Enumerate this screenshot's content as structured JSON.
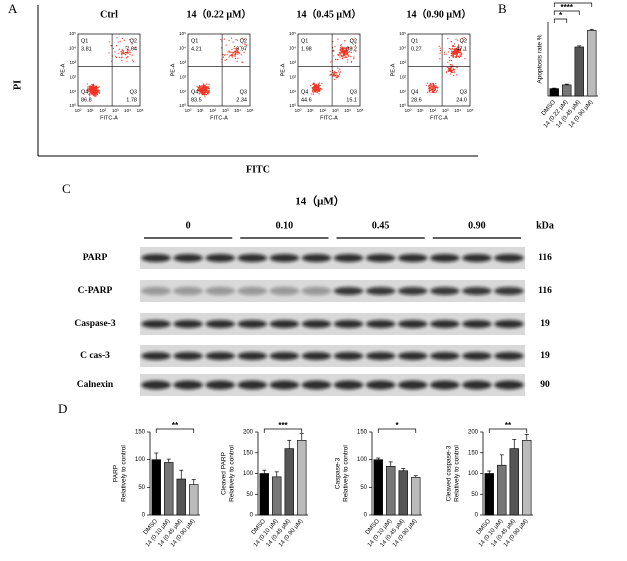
{
  "panel_labels": [
    "A",
    "B",
    "C",
    "D"
  ],
  "flow": {
    "y_label": "PI",
    "x_label": "FITC",
    "axis_ticks": [
      "10⁰",
      "10¹",
      "10²",
      "10³",
      "10⁴",
      "10⁵"
    ],
    "plots": [
      {
        "title": "Ctrl",
        "x_label": "FITC-A",
        "y_label": "PE-A",
        "quadrants": [
          {
            "name": "Q1",
            "value": "3.81"
          },
          {
            "name": "Q2",
            "value": "7.64"
          },
          {
            "name": "Q4",
            "value": "86.8"
          },
          {
            "name": "Q3",
            "value": "1.78"
          }
        ]
      },
      {
        "title": "14（0.22 μM）",
        "x_label": "FITC-A",
        "y_label": "PE-A",
        "quadrants": [
          {
            "name": "Q1",
            "value": "4.21"
          },
          {
            "name": "Q2",
            "value": "9.97"
          },
          {
            "name": "Q4",
            "value": "83.5"
          },
          {
            "name": "Q3",
            "value": "2.34"
          }
        ]
      },
      {
        "title": "14（0.45 μM）",
        "x_label": "FITC-A",
        "y_label": "PE-A",
        "quadrants": [
          {
            "name": "Q1",
            "value": "1.98"
          },
          {
            "name": "Q2",
            "value": "38.2"
          },
          {
            "name": "Q4",
            "value": "44.6"
          },
          {
            "name": "Q3",
            "value": "15.1"
          }
        ]
      },
      {
        "title": "14（0.90 μM）",
        "x_label": "FITC-A",
        "y_label": "PE-A",
        "quadrants": [
          {
            "name": "Q1",
            "value": "0.27"
          },
          {
            "name": "Q2",
            "value": "47.1"
          },
          {
            "name": "Q4",
            "value": "28.6"
          },
          {
            "name": "Q3",
            "value": "24.0"
          }
        ]
      }
    ]
  },
  "blot": {
    "header": "14（μM）",
    "groups": [
      "0",
      "0.10",
      "0.45",
      "0.90"
    ],
    "unit": "kDa",
    "rows": [
      {
        "name": "PARP",
        "kda": "116"
      },
      {
        "name": "C-PARP",
        "kda": "116"
      },
      {
        "name": "Caspase-3",
        "kda": "19"
      },
      {
        "name": "C cas-3",
        "kda": "19"
      },
      {
        "name": "Calnexin",
        "kda": "90"
      }
    ]
  },
  "chart_data": [
    {
      "type": "bar",
      "y_label": [
        "Apoptosis rate %"
      ],
      "categories": [
        "DMSO",
        "14 (0.22 μM)",
        "14 (0.45 μM)",
        "14 (0.90 μM)"
      ],
      "values": [
        8,
        12,
        53,
        71
      ],
      "errors": [
        0.5,
        0.8,
        1.2,
        1
      ],
      "colors": [
        "#000000",
        "#777777",
        "#555555",
        "#bbbbbb"
      ],
      "ylim": [
        0,
        80
      ],
      "comparisons": [
        {
          "label": "*",
          "between": [
            "DMSO",
            "14 (0.22 μM)"
          ]
        },
        {
          "label": "****",
          "between": [
            "DMSO",
            "14 (0.45 μM)"
          ]
        },
        {
          "label": "****",
          "between": [
            "DMSO",
            "14 (0.90 μM)"
          ]
        }
      ]
    },
    {
      "type": "bar",
      "y_label": [
        "PARP",
        "Relatively to control"
      ],
      "categories": [
        "DMSO",
        "14 (0.10 μM)",
        "14 (0.45 μM)",
        "14 (0.90 μM)"
      ],
      "values": [
        100,
        95,
        65,
        55
      ],
      "errors": [
        12,
        6,
        16,
        9
      ],
      "colors": [
        "#000000",
        "#777777",
        "#555555",
        "#bbbbbb"
      ],
      "ylim": [
        0,
        150
      ],
      "yticks": [
        0,
        50,
        100,
        150
      ],
      "comparisons": [
        {
          "label": "**",
          "between": [
            "DMSO",
            "14 (0.90 μM)"
          ]
        }
      ]
    },
    {
      "type": "bar",
      "y_label": [
        "Cleaved PARP",
        "Relatively to control"
      ],
      "categories": [
        "DMSO",
        "14 (0.10 μM)",
        "14 (0.45 μM)",
        "14 (0.90 μM)"
      ],
      "values": [
        100,
        92,
        160,
        180
      ],
      "errors": [
        8,
        12,
        20,
        16
      ],
      "colors": [
        "#000000",
        "#777777",
        "#555555",
        "#bbbbbb"
      ],
      "ylim": [
        0,
        200
      ],
      "yticks": [
        0,
        50,
        100,
        150,
        200
      ],
      "comparisons": [
        {
          "label": "***",
          "between": [
            "DMSO",
            "14 (0.90 μM)"
          ]
        }
      ]
    },
    {
      "type": "bar",
      "y_label": [
        "Caspase-3",
        "Relatively to control"
      ],
      "categories": [
        "DMSO",
        "14 (0.10 μM)",
        "14 (0.45 μM)",
        "14 (0.90 μM)"
      ],
      "values": [
        100,
        88,
        80,
        68
      ],
      "errors": [
        3,
        8,
        4,
        3
      ],
      "colors": [
        "#000000",
        "#777777",
        "#555555",
        "#bbbbbb"
      ],
      "ylim": [
        0,
        150
      ],
      "yticks": [
        0,
        50,
        100,
        150
      ],
      "comparisons": [
        {
          "label": "*",
          "between": [
            "DMSO",
            "14 (0.90 μM)"
          ]
        }
      ]
    },
    {
      "type": "bar",
      "y_label": [
        "Cleaved caspase-3",
        "Relatively to control"
      ],
      "categories": [
        "DMSO",
        "14 (0.10 μM)",
        "14 (0.45 μM)",
        "14 (0.90 μM)"
      ],
      "values": [
        100,
        120,
        160,
        180
      ],
      "errors": [
        6,
        25,
        22,
        14
      ],
      "colors": [
        "#000000",
        "#777777",
        "#555555",
        "#bbbbbb"
      ],
      "ylim": [
        0,
        200
      ],
      "yticks": [
        0,
        50,
        100,
        150,
        200
      ],
      "comparisons": [
        {
          "label": "**",
          "between": [
            "DMSO",
            "14 (0.90 μM)"
          ]
        }
      ]
    }
  ]
}
